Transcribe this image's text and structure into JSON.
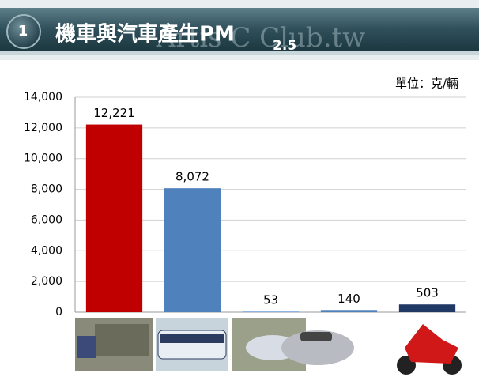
{
  "badge": "1",
  "watermark": "Artis C Club.tw",
  "chart_data": {
    "type": "bar",
    "title": "機車與汽車產生PM",
    "title_subscript": "2.5",
    "unit_label": "單位：克/輛",
    "categories": [
      null,
      null,
      null,
      null,
      null
    ],
    "values": [
      12221,
      8072,
      53,
      140,
      503
    ],
    "value_labels": [
      "12,221",
      "8,072",
      "53",
      "140",
      "503"
    ],
    "colors": [
      "#c00000",
      "#4f81bd",
      "#8db3e2",
      "#4f81bd",
      "#1f3864"
    ],
    "ylim": [
      0,
      14000
    ],
    "yticks": [
      0,
      {
        "value": 2000,
        "label": "2,000"
      },
      {
        "value": 4000,
        "label": "4,000"
      },
      {
        "value": 6000,
        "label": "6,000"
      },
      {
        "value": 8000,
        "label": "8,000"
      },
      {
        "value": 10000,
        "label": "10,000"
      },
      {
        "value": 12000,
        "label": "12,000"
      },
      {
        "value": 14000,
        "label": "14,000"
      }
    ],
    "grid": true
  }
}
